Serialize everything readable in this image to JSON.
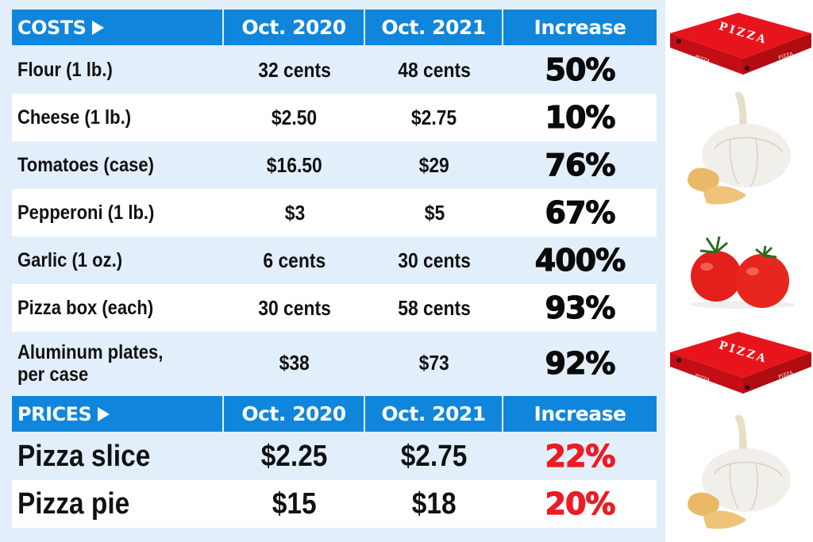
{
  "costs_table": {
    "header": {
      "label": "COSTS",
      "arrow_icon": "triangle-right-icon",
      "col1": "Oct. 2020",
      "col2": "Oct. 2021",
      "col3": "Increase"
    },
    "rows": [
      {
        "item": "Flour (1 lb.)",
        "oct2020": "32 cents",
        "oct2021": "48 cents",
        "increase": "50%"
      },
      {
        "item": "Cheese (1 lb.)",
        "oct2020": "$2.50",
        "oct2021": "$2.75",
        "increase": "10%"
      },
      {
        "item": "Tomatoes (case)",
        "oct2020": "$16.50",
        "oct2021": "$29",
        "increase": "76%"
      },
      {
        "item": "Pepperoni (1 lb.)",
        "oct2020": "$3",
        "oct2021": "$5",
        "increase": "67%"
      },
      {
        "item": "Garlic (1 oz.)",
        "oct2020": "6 cents",
        "oct2021": "30 cents",
        "increase": "400%"
      },
      {
        "item": "Pizza box (each)",
        "oct2020": "30 cents",
        "oct2021": "58 cents",
        "increase": "93%"
      },
      {
        "item_line1": "Aluminum plates,",
        "item_line2": "per case",
        "oct2020": "$38",
        "oct2021": "$73",
        "increase": "92%"
      }
    ]
  },
  "prices_table": {
    "header": {
      "label": "PRICES",
      "arrow_icon": "triangle-right-icon",
      "col1": "Oct. 2020",
      "col2": "Oct. 2021",
      "col3": "Increase"
    },
    "rows": [
      {
        "item": "Pizza slice",
        "oct2020": "$2.25",
        "oct2021": "$2.75",
        "increase": "22%"
      },
      {
        "item": "Pizza pie",
        "oct2020": "$15",
        "oct2021": "$18",
        "increase": "20%"
      }
    ]
  },
  "images": {
    "pizza_box_text": "PIZZA"
  },
  "colors": {
    "header_blue": "#0f86dc",
    "panel_blue": "#e2effa",
    "price_increase_red": "#ee1b24"
  }
}
